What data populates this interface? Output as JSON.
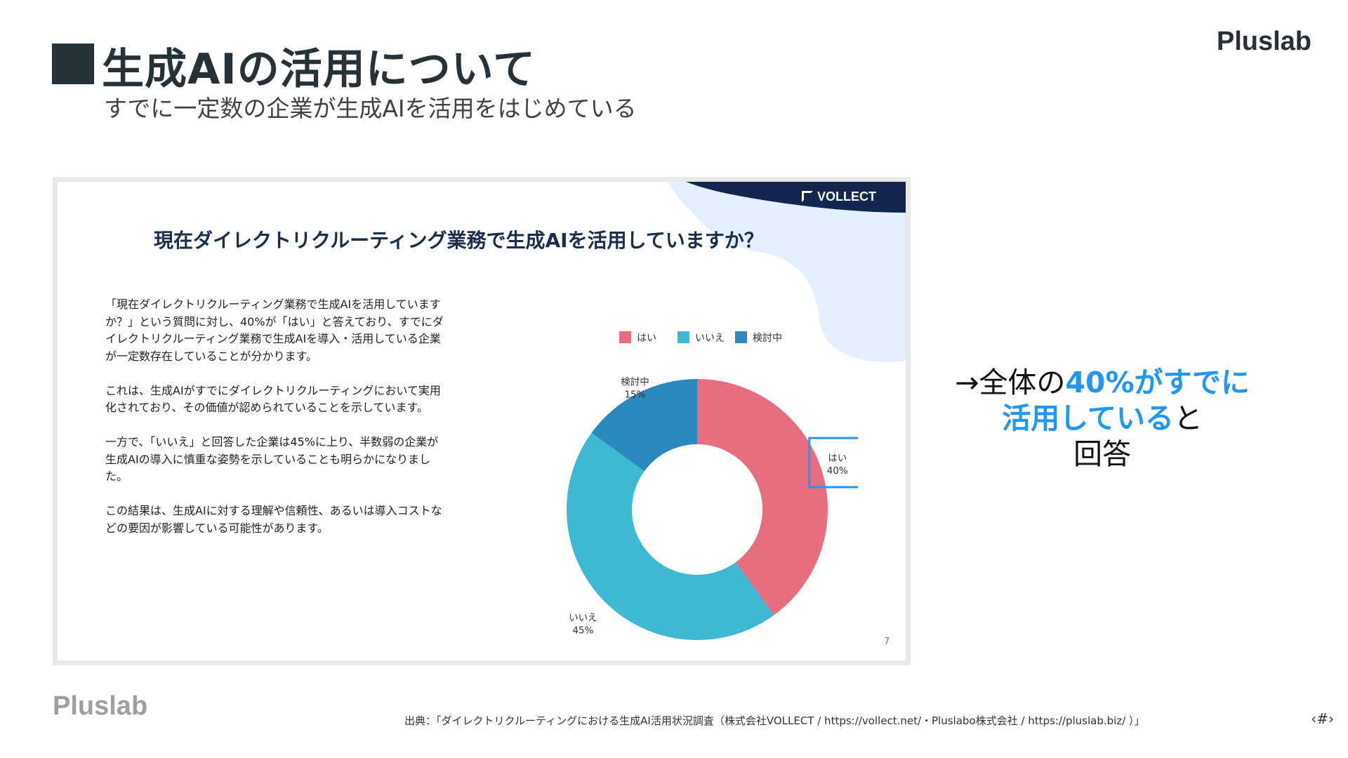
{
  "header": {
    "title": "生成AIの活用について",
    "subtitle": "すでに一定数の企業が生成AIを活用をはじめている",
    "brand": "Pluslab"
  },
  "slide": {
    "logo_text": "VOLLECT",
    "title": "現在ダイレクトリクルーティング業務で生成AIを活用していますか？",
    "paragraphs": [
      "「現在ダイレクトリクルーティング業務で生成AIを活用していますか？」という質問に対し、40%が「はい」と答えており、すでにダイレクトリクルーティング業務で生成AIを導入・活用している企業が一定数存在していることが分かります。",
      "これは、生成AIがすでにダイレクトリクルーティングにおいて実用化されており、その価値が認められていることを示しています。",
      "一方で、「いいえ」と回答した企業は45%に上り、半数弱の企業が生成AIの導入に慎重な姿勢を示していることも明らかになりました。",
      "この結果は、生成AIに対する理解や信頼性、あるいは導入コストなどの要因が影響している可能性があります。"
    ],
    "page_number": "7"
  },
  "chart_data": {
    "type": "pie",
    "donut": true,
    "categories": [
      "はい",
      "いいえ",
      "検討中"
    ],
    "values": [
      40,
      45,
      15
    ],
    "value_labels": [
      "40%",
      "45%",
      "15%"
    ],
    "colors": [
      "#e76e81",
      "#3fb8d3",
      "#2b88bc"
    ],
    "legend_position": "top",
    "highlighted_category": "はい",
    "highlight_color": "#2196f3"
  },
  "callout": {
    "prefix": "→全体の",
    "highlight1": "40%がすでに",
    "highlight2": "活用している",
    "suffix": "と",
    "last": "回答"
  },
  "footer": {
    "brand": "Pluslab",
    "source": "出典：「ダイレクトリクルーティングにおける生成AI活用状況調査（株式会社VOLLECT / https://vollect.net/・Pluslabo株式会社 / https://pluslab.biz/ ）」",
    "page_marker": "‹#›"
  }
}
